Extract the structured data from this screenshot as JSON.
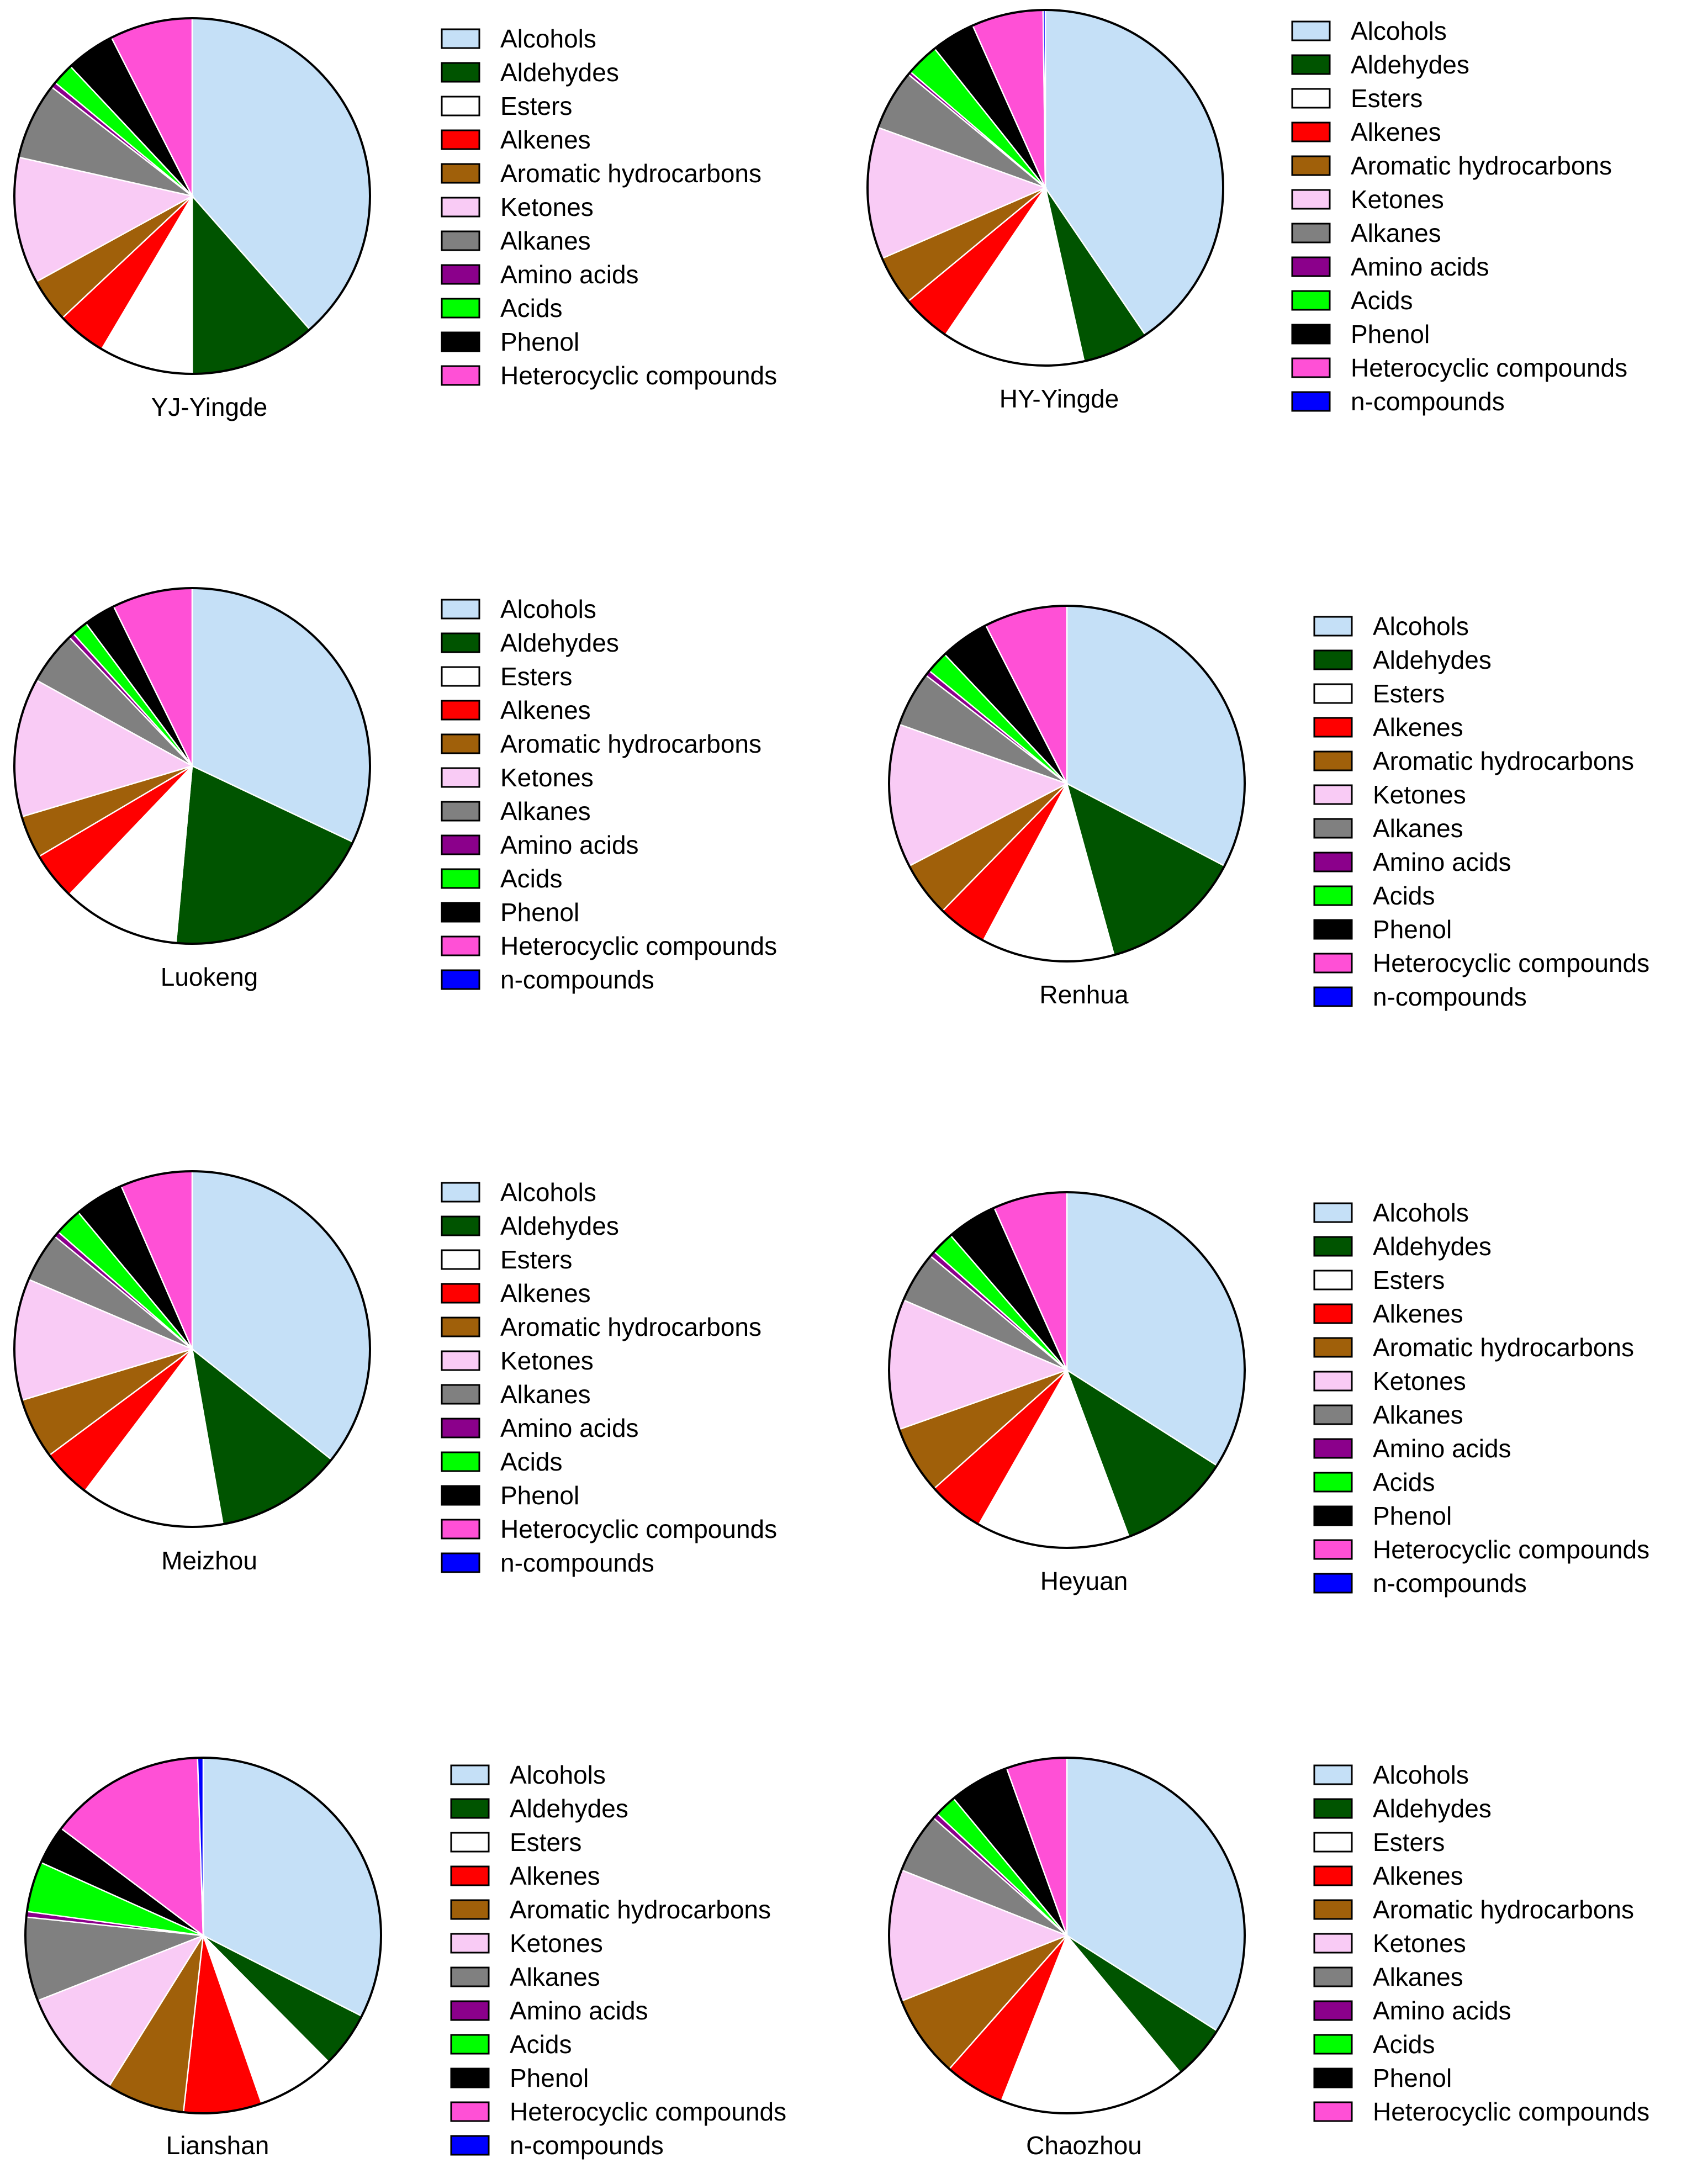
{
  "categories": [
    "Alcohols",
    "Aldehydes",
    "Esters",
    "Alkenes",
    "Aromatic hydrocarbons",
    "Ketones",
    "Alkanes",
    "Amino acids",
    "Acids",
    "Phenol",
    "Heterocyclic compounds",
    "n-compounds"
  ],
  "colors": [
    "#c5e0f7",
    "#005400",
    "#ffffff",
    "#ff0000",
    "#a0600a",
    "#f9cbf5",
    "#808080",
    "#8b008b",
    "#00ff00",
    "#000000",
    "#ff50d6",
    "#0000ff"
  ],
  "chart_data": [
    {
      "type": "pie",
      "title": "YJ-Yingde",
      "legend": [
        "Alcohols",
        "Aldehydes",
        "Esters",
        "Alkenes",
        "Aromatic hydrocarbons",
        "Ketones",
        "Alkanes",
        "Amino acids",
        "Acids",
        "Phenol",
        "Heterocyclic compounds"
      ],
      "values": [
        38.5,
        11.5,
        8.5,
        4.5,
        4,
        11.5,
        7,
        0.5,
        2,
        4.5,
        7.5
      ]
    },
    {
      "type": "pie",
      "title": "HY-Yingde",
      "legend": [
        "Alcohols",
        "Aldehydes",
        "Esters",
        "Alkenes",
        "Aromatic hydrocarbons",
        "Ketones",
        "Alkanes",
        "Amino acids",
        "Acids",
        "Phenol",
        "Heterocyclic compounds",
        "n-compounds"
      ],
      "values": [
        40.5,
        6,
        13,
        4.5,
        4.5,
        12,
        5.5,
        0.3,
        3,
        4,
        6.5,
        0.2
      ]
    },
    {
      "type": "pie",
      "title": "Luokeng",
      "legend": [
        "Alcohols",
        "Aldehydes",
        "Esters",
        "Alkenes",
        "Aromatic hydrocarbons",
        "Ketones",
        "Alkanes",
        "Amino acids",
        "Acids",
        "Phenol",
        "Heterocyclic compounds",
        "n-compounds"
      ],
      "values": [
        33,
        20,
        11,
        4.5,
        4,
        13,
        5,
        0.5,
        1.5,
        3,
        7.5,
        0
      ]
    },
    {
      "type": "pie",
      "title": "Renhua",
      "legend": [
        "Alcohols",
        "Aldehydes",
        "Esters",
        "Alkenes",
        "Aromatic hydrocarbons",
        "Ketones",
        "Alkanes",
        "Amino acids",
        "Acids",
        "Phenol",
        "Heterocyclic compounds",
        "n-compounds"
      ],
      "values": [
        32.5,
        13,
        12,
        4.5,
        5,
        13,
        5,
        0.5,
        2,
        4.5,
        7.5,
        0
      ]
    },
    {
      "type": "pie",
      "title": "Meizhou",
      "legend": [
        "Alcohols",
        "Aldehydes",
        "Esters",
        "Alkenes",
        "Aromatic hydrocarbons",
        "Ketones",
        "Alkanes",
        "Amino acids",
        "Acids",
        "Phenol",
        "Heterocyclic compounds",
        "n-compounds"
      ],
      "values": [
        35.5,
        11.5,
        13,
        4.5,
        5.5,
        11,
        4.5,
        0.5,
        2.5,
        4.5,
        6.5,
        0
      ]
    },
    {
      "type": "pie",
      "title": "Heyuan",
      "legend": [
        "Alcohols",
        "Aldehydes",
        "Esters",
        "Alkenes",
        "Aromatic hydrocarbons",
        "Ketones",
        "Alkanes",
        "Amino acids",
        "Acids",
        "Phenol",
        "Heterocyclic compounds",
        "n-compounds"
      ],
      "values": [
        33,
        10,
        13.5,
        5,
        6,
        11.5,
        4.5,
        0.5,
        2,
        4.5,
        6.5,
        0
      ]
    },
    {
      "type": "pie",
      "title": "Lianshan",
      "legend": [
        "Alcohols",
        "Aldehydes",
        "Esters",
        "Alkenes",
        "Aromatic hydrocarbons",
        "Ketones",
        "Alkanes",
        "Amino acids",
        "Acids",
        "Phenol",
        "Heterocyclic compounds",
        "n-compounds"
      ],
      "values": [
        32,
        5,
        7,
        7,
        7,
        10,
        7.5,
        0.5,
        4.5,
        3.5,
        14,
        0.5
      ]
    },
    {
      "type": "pie",
      "title": "Chaozhou",
      "legend": [
        "Alcohols",
        "Aldehydes",
        "Esters",
        "Alkenes",
        "Aromatic hydrocarbons",
        "Ketones",
        "Alkanes",
        "Amino acids",
        "Acids",
        "Phenol",
        "Heterocyclic compounds"
      ],
      "values": [
        34,
        5,
        17,
        5.5,
        7.5,
        12,
        5.5,
        0.5,
        2,
        5.5,
        5.5
      ]
    }
  ]
}
